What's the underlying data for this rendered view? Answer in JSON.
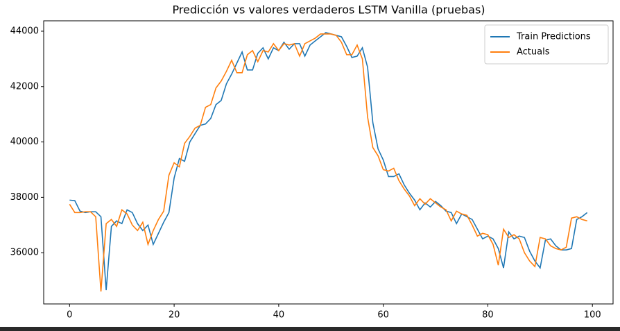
{
  "chart_data": {
    "type": "line",
    "title": "Predicción vs valores verdaderos LSTM Vanilla (pruebas)",
    "x": [
      0,
      1,
      2,
      3,
      4,
      5,
      6,
      7,
      8,
      9,
      10,
      11,
      12,
      13,
      14,
      15,
      16,
      17,
      18,
      19,
      20,
      21,
      22,
      23,
      24,
      25,
      26,
      27,
      28,
      29,
      30,
      31,
      32,
      33,
      34,
      35,
      36,
      37,
      38,
      39,
      40,
      41,
      42,
      43,
      44,
      45,
      46,
      47,
      48,
      49,
      50,
      51,
      52,
      53,
      54,
      55,
      56,
      57,
      58,
      59,
      60,
      61,
      62,
      63,
      64,
      65,
      66,
      67,
      68,
      69,
      70,
      71,
      72,
      73,
      74,
      75,
      76,
      77,
      78,
      79,
      80,
      81,
      82,
      83,
      84,
      85,
      86,
      87,
      88,
      89,
      90,
      91,
      92,
      93,
      94,
      95,
      96,
      97,
      98,
      99
    ],
    "series": [
      {
        "name": "Train Predictions",
        "color": "#1f77b4",
        "values": [
          37900,
          37880,
          37500,
          37450,
          37480,
          37480,
          37300,
          34650,
          36950,
          37150,
          37050,
          37550,
          37450,
          37050,
          36800,
          37000,
          36300,
          36700,
          37100,
          37450,
          38700,
          39400,
          39300,
          40000,
          40300,
          40600,
          40650,
          40850,
          41350,
          41500,
          42100,
          42450,
          42850,
          43250,
          42600,
          42600,
          43200,
          43400,
          43000,
          43400,
          43300,
          43600,
          43350,
          43550,
          43550,
          43100,
          43500,
          43650,
          43800,
          43950,
          43900,
          43850,
          43800,
          43450,
          43050,
          43100,
          43400,
          42700,
          40700,
          39750,
          39350,
          38750,
          38750,
          38850,
          38450,
          38150,
          37900,
          37550,
          37800,
          37650,
          37850,
          37700,
          37500,
          37450,
          37050,
          37400,
          37300,
          37200,
          36850,
          36500,
          36600,
          36500,
          36150,
          35450,
          36750,
          36500,
          36600,
          36550,
          36050,
          35700,
          35450,
          36450,
          36500,
          36250,
          36100,
          36100,
          36150,
          37200,
          37300,
          37450
        ]
      },
      {
        "name": "Actuals",
        "color": "#ff7f0e",
        "values": [
          37750,
          37450,
          37450,
          37480,
          37480,
          37300,
          34600,
          37050,
          37200,
          36950,
          37550,
          37400,
          37000,
          36800,
          37100,
          36300,
          36800,
          37200,
          37500,
          38800,
          39250,
          39100,
          39950,
          40200,
          40500,
          40600,
          41250,
          41350,
          41950,
          42200,
          42550,
          42950,
          42500,
          42500,
          43150,
          43300,
          42900,
          43300,
          43250,
          43550,
          43300,
          43550,
          43500,
          43550,
          43100,
          43550,
          43650,
          43750,
          43900,
          43900,
          43900,
          43850,
          43600,
          43150,
          43150,
          43500,
          43000,
          40900,
          39800,
          39500,
          39000,
          38950,
          39050,
          38600,
          38300,
          38050,
          37700,
          37950,
          37750,
          37950,
          37800,
          37650,
          37550,
          37150,
          37500,
          37400,
          37350,
          37000,
          36600,
          36700,
          36650,
          36300,
          35550,
          36850,
          36550,
          36650,
          36500,
          36000,
          35700,
          35500,
          36550,
          36500,
          36250,
          36150,
          36100,
          36200,
          37250,
          37300,
          37200,
          37150
        ]
      }
    ],
    "xlim": [
      -4.95,
      103.95
    ],
    "xticks": [
      0,
      20,
      40,
      60,
      80,
      100
    ],
    "ylim": [
      34150,
      44375
    ],
    "yticks": [
      36000,
      38000,
      40000,
      42000,
      44000
    ],
    "legend": "upper right"
  }
}
